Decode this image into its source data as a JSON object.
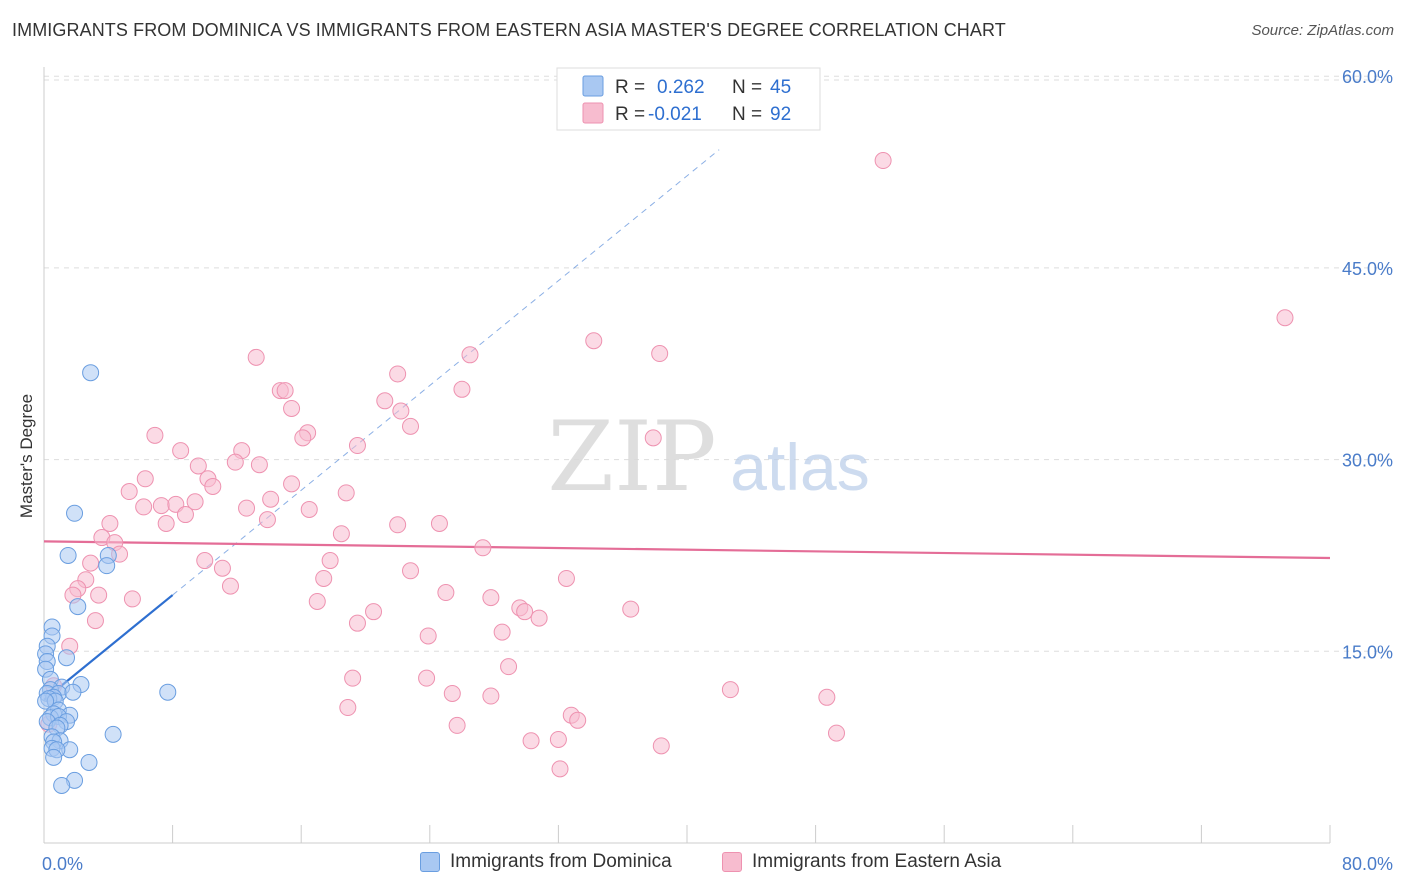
{
  "header": {
    "title": "IMMIGRANTS FROM DOMINICA VS IMMIGRANTS FROM EASTERN ASIA MASTER'S DEGREE CORRELATION CHART",
    "source": "Source: ZipAtlas.com"
  },
  "watermark": {
    "zip": "ZIP",
    "atlas": "atlas"
  },
  "colors": {
    "blue_fill": "#a9c8f2",
    "blue_stroke": "#6a9ee0",
    "blue_line": "#2e6fd0",
    "pink_fill": "#f7bccf",
    "pink_stroke": "#ee92b0",
    "pink_line": "#e46d97",
    "axis_label": "#4a7cc9",
    "grid": "#dddddd"
  },
  "legend_top": [
    {
      "r_label": "R =",
      "r_value": "0.262",
      "n_label": "N =",
      "n_value": "45"
    },
    {
      "r_label": "R =",
      "r_value": "-0.021",
      "n_label": "N =",
      "n_value": "92"
    }
  ],
  "legend_bottom": [
    "Immigrants from Dominica",
    "Immigrants from Eastern Asia"
  ],
  "chart_data": {
    "type": "scatter",
    "ylabel": "Master's Degree",
    "xlim": [
      0,
      80
    ],
    "ylim": [
      0,
      62
    ],
    "x_tick_labels": [
      "0.0%",
      "80.0%"
    ],
    "y_ticks": [
      15,
      30,
      45,
      60
    ],
    "y_tick_labels": [
      "15.0%",
      "30.0%",
      "45.0%",
      "60.0%"
    ],
    "grid": "horizontal dashed",
    "series": [
      {
        "name": "Immigrants from Dominica",
        "r": 0.262,
        "n": 45,
        "trend": {
          "x0": 0,
          "y0": 11.2,
          "x1": 8,
          "y1": 19.4,
          "dashed_to_x": 42
        },
        "points": [
          [
            2.9,
            36.8
          ],
          [
            1.9,
            25.8
          ],
          [
            1.5,
            22.5
          ],
          [
            4.0,
            22.5
          ],
          [
            3.9,
            21.7
          ],
          [
            2.1,
            18.5
          ],
          [
            0.5,
            16.9
          ],
          [
            0.5,
            16.2
          ],
          [
            0.2,
            15.4
          ],
          [
            0.1,
            14.8
          ],
          [
            1.4,
            14.5
          ],
          [
            0.2,
            14.2
          ],
          [
            0.1,
            13.6
          ],
          [
            0.4,
            12.8
          ],
          [
            2.3,
            12.4
          ],
          [
            1.1,
            12.2
          ],
          [
            0.4,
            12.0
          ],
          [
            0.2,
            11.7
          ],
          [
            0.9,
            11.7
          ],
          [
            1.8,
            11.8
          ],
          [
            0.6,
            11.4
          ],
          [
            0.3,
            11.3
          ],
          [
            7.7,
            11.8
          ],
          [
            0.7,
            11.1
          ],
          [
            0.1,
            11.1
          ],
          [
            0.9,
            10.4
          ],
          [
            0.6,
            10.1
          ],
          [
            1.6,
            10.0
          ],
          [
            0.4,
            9.8
          ],
          [
            0.9,
            9.9
          ],
          [
            1.4,
            9.5
          ],
          [
            0.2,
            9.5
          ],
          [
            1.0,
            9.2
          ],
          [
            0.8,
            9.0
          ],
          [
            4.3,
            8.5
          ],
          [
            0.5,
            8.3
          ],
          [
            1.0,
            8.0
          ],
          [
            0.6,
            7.9
          ],
          [
            0.5,
            7.4
          ],
          [
            1.6,
            7.3
          ],
          [
            0.8,
            7.3
          ],
          [
            0.6,
            6.7
          ],
          [
            2.8,
            6.3
          ],
          [
            1.9,
            4.9
          ],
          [
            1.1,
            4.5
          ]
        ]
      },
      {
        "name": "Immigrants from Eastern Asia",
        "r": -0.021,
        "n": 92,
        "trend": {
          "x0": 0,
          "y0": 23.6,
          "x1": 80,
          "y1": 22.3
        },
        "points": [
          [
            52.2,
            53.4
          ],
          [
            77.2,
            41.1
          ],
          [
            34.2,
            39.3
          ],
          [
            38.3,
            38.3
          ],
          [
            26.5,
            38.2
          ],
          [
            13.2,
            38.0
          ],
          [
            22.0,
            36.7
          ],
          [
            14.7,
            35.4
          ],
          [
            15.0,
            35.4
          ],
          [
            26.0,
            35.5
          ],
          [
            21.2,
            34.6
          ],
          [
            22.2,
            33.8
          ],
          [
            15.4,
            34.0
          ],
          [
            22.8,
            32.6
          ],
          [
            6.9,
            31.9
          ],
          [
            16.4,
            32.1
          ],
          [
            16.1,
            31.7
          ],
          [
            37.9,
            31.7
          ],
          [
            19.5,
            31.1
          ],
          [
            8.5,
            30.7
          ],
          [
            12.3,
            30.7
          ],
          [
            11.9,
            29.8
          ],
          [
            9.6,
            29.5
          ],
          [
            13.4,
            29.6
          ],
          [
            6.3,
            28.5
          ],
          [
            10.2,
            28.5
          ],
          [
            15.4,
            28.1
          ],
          [
            10.5,
            27.9
          ],
          [
            5.3,
            27.5
          ],
          [
            18.8,
            27.4
          ],
          [
            14.1,
            26.9
          ],
          [
            9.4,
            26.7
          ],
          [
            7.3,
            26.4
          ],
          [
            8.2,
            26.5
          ],
          [
            6.2,
            26.3
          ],
          [
            12.6,
            26.2
          ],
          [
            16.5,
            26.1
          ],
          [
            8.8,
            25.7
          ],
          [
            13.9,
            25.3
          ],
          [
            7.6,
            25.0
          ],
          [
            4.1,
            25.0
          ],
          [
            22.0,
            24.9
          ],
          [
            24.6,
            25.0
          ],
          [
            18.5,
            24.2
          ],
          [
            3.6,
            23.9
          ],
          [
            4.4,
            23.5
          ],
          [
            27.3,
            23.1
          ],
          [
            4.7,
            22.6
          ],
          [
            10.0,
            22.1
          ],
          [
            17.8,
            22.1
          ],
          [
            2.9,
            21.9
          ],
          [
            11.1,
            21.5
          ],
          [
            22.8,
            21.3
          ],
          [
            17.4,
            20.7
          ],
          [
            32.5,
            20.7
          ],
          [
            2.6,
            20.6
          ],
          [
            11.6,
            20.1
          ],
          [
            2.1,
            19.9
          ],
          [
            25.0,
            19.6
          ],
          [
            1.8,
            19.4
          ],
          [
            3.4,
            19.4
          ],
          [
            5.5,
            19.1
          ],
          [
            27.8,
            19.2
          ],
          [
            17.0,
            18.9
          ],
          [
            36.5,
            18.3
          ],
          [
            29.6,
            18.4
          ],
          [
            20.5,
            18.1
          ],
          [
            29.9,
            18.1
          ],
          [
            30.8,
            17.6
          ],
          [
            3.2,
            17.4
          ],
          [
            19.5,
            17.2
          ],
          [
            28.5,
            16.5
          ],
          [
            23.9,
            16.2
          ],
          [
            1.6,
            15.4
          ],
          [
            28.9,
            13.8
          ],
          [
            19.2,
            12.9
          ],
          [
            23.8,
            12.9
          ],
          [
            42.7,
            12.0
          ],
          [
            0.6,
            12.3
          ],
          [
            25.4,
            11.7
          ],
          [
            27.8,
            11.5
          ],
          [
            48.7,
            11.4
          ],
          [
            18.9,
            10.6
          ],
          [
            32.8,
            10.0
          ],
          [
            33.2,
            9.6
          ],
          [
            25.7,
            9.2
          ],
          [
            0.3,
            9.3
          ],
          [
            49.3,
            8.6
          ],
          [
            30.3,
            8.0
          ],
          [
            32.0,
            8.1
          ],
          [
            38.4,
            7.6
          ],
          [
            32.1,
            5.8
          ]
        ]
      }
    ]
  }
}
